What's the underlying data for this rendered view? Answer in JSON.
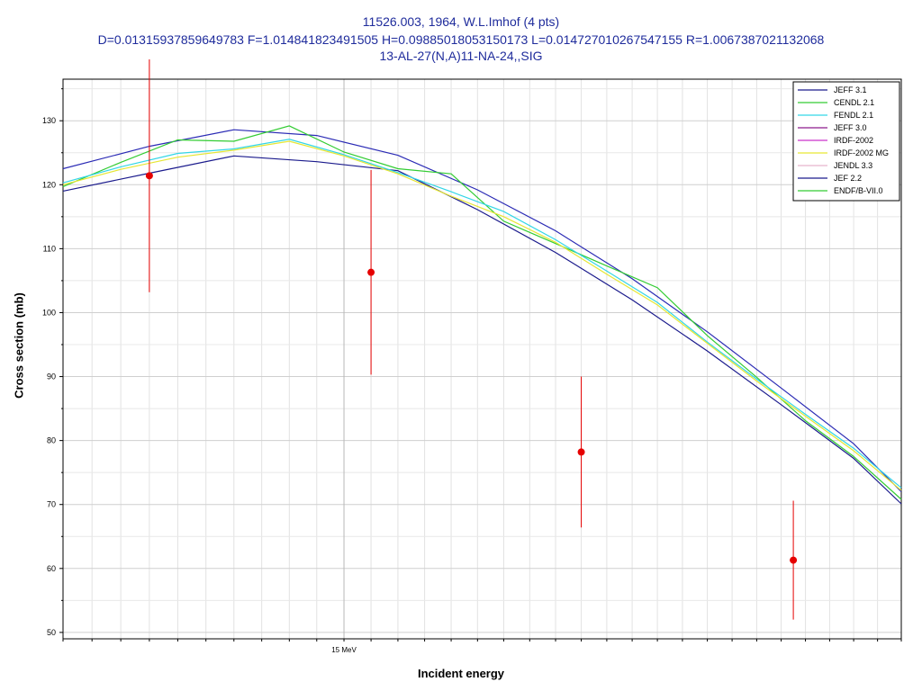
{
  "title": {
    "line1": "11526.003, 1964, W.L.Imhof (4 pts)",
    "line2": "D=0.01315937859649783 F=1.014841823491505 H=0.09885018053150173 L=0.014727010267547155 R=1.0067387021132068",
    "line3": "13-AL-27(N,A)11-NA-24,,SIG"
  },
  "chart_data": {
    "type": "line",
    "xlabel": "Incident energy",
    "ylabel": "Cross section (mb)",
    "x_unit": "MeV",
    "x_axis_scale": "log",
    "xlim": [
      14.0,
      17.2
    ],
    "ylim": [
      49,
      136.5
    ],
    "y_ticks": [
      50,
      60,
      70,
      80,
      90,
      100,
      110,
      120,
      130
    ],
    "x_tick_labels": [
      "15 MeV"
    ],
    "grid": true,
    "legend_position": "top-right",
    "legend": [
      {
        "name": "JEFF 3.1",
        "color": "#1a1a8c"
      },
      {
        "name": "CENDL 2.1",
        "color": "#33cc33"
      },
      {
        "name": "FENDL 2.1",
        "color": "#33d6e6"
      },
      {
        "name": "JEFF 3.0",
        "color": "#8c1a8c"
      },
      {
        "name": "IRDF-2002",
        "color": "#cc33cc"
      },
      {
        "name": "IRDF-2002 MG",
        "color": "#e6e633"
      },
      {
        "name": "JENDL 3.3",
        "color": "#e6b3cc"
      },
      {
        "name": "JEF 2.2",
        "color": "#1a1a8c"
      },
      {
        "name": "ENDF/B-VII.0",
        "color": "#33cc33"
      }
    ],
    "series": [
      {
        "name": "JEFF 3.1",
        "color": "#2b2bb5",
        "x": [
          14.0,
          14.3,
          14.6,
          14.9,
          15.2,
          15.5,
          15.8,
          16.1,
          16.4,
          16.7,
          17.0,
          17.2
        ],
        "y": [
          122.5,
          126.0,
          128.6,
          127.7,
          124.6,
          119.2,
          112.8,
          105.3,
          97.0,
          88.2,
          79.5,
          72.0
        ]
      },
      {
        "name": "JEF 2.2",
        "color": "#1a1a8c",
        "x": [
          14.0,
          14.3,
          14.6,
          14.9,
          15.2,
          15.5,
          15.8,
          16.1,
          16.4,
          16.7,
          17.0,
          17.2
        ],
        "y": [
          119.0,
          121.8,
          124.5,
          123.6,
          122.2,
          116.1,
          109.4,
          102.0,
          94.0,
          85.6,
          77.2,
          70.1
        ]
      },
      {
        "name": "ENDF/B-VII.0",
        "color": "#33cc33",
        "x": [
          14.0,
          14.2,
          14.4,
          14.6,
          14.8,
          15.0,
          15.2,
          15.4,
          15.6,
          15.8,
          16.0,
          16.2,
          16.4,
          16.6,
          16.8,
          17.0,
          17.2
        ],
        "y": [
          119.7,
          123.5,
          127.0,
          126.8,
          129.2,
          125.1,
          122.5,
          121.7,
          114.3,
          110.8,
          107.3,
          103.9,
          96.4,
          89.9,
          83.1,
          77.5,
          70.8
        ]
      },
      {
        "name": "FENDL 2.1",
        "color": "#33d6e6",
        "x": [
          14.0,
          14.2,
          14.4,
          14.6,
          14.8,
          15.0,
          15.2,
          15.4,
          15.6,
          15.8,
          16.0,
          16.2,
          16.4,
          16.6,
          16.8,
          17.0,
          17.2
        ],
        "y": [
          120.3,
          122.8,
          124.9,
          125.6,
          127.1,
          124.7,
          121.9,
          118.9,
          115.8,
          111.4,
          106.5,
          101.6,
          95.4,
          89.6,
          84.1,
          78.8,
          72.6
        ]
      },
      {
        "name": "IRDF-2002 MG",
        "color": "#e6e633",
        "x": [
          14.0,
          14.2,
          14.4,
          14.6,
          14.8,
          15.0,
          15.2,
          15.4,
          15.6,
          15.8,
          16.0,
          16.2,
          16.4,
          16.6,
          16.8,
          17.0,
          17.2
        ],
        "y": [
          120.0,
          122.4,
          124.3,
          125.4,
          126.8,
          124.5,
          121.7,
          118.2,
          115.0,
          111.0,
          106.0,
          101.2,
          95.2,
          89.3,
          83.8,
          78.4,
          72.2
        ]
      }
    ],
    "experimental": {
      "name": "W.L.Imhof (4 pts)",
      "color": "#e60000",
      "x": [
        14.3,
        15.1,
        15.9,
        16.75
      ],
      "y": [
        121.4,
        106.3,
        78.2,
        61.3
      ],
      "yerr": [
        18.2,
        16.0,
        11.8,
        9.3
      ]
    }
  }
}
